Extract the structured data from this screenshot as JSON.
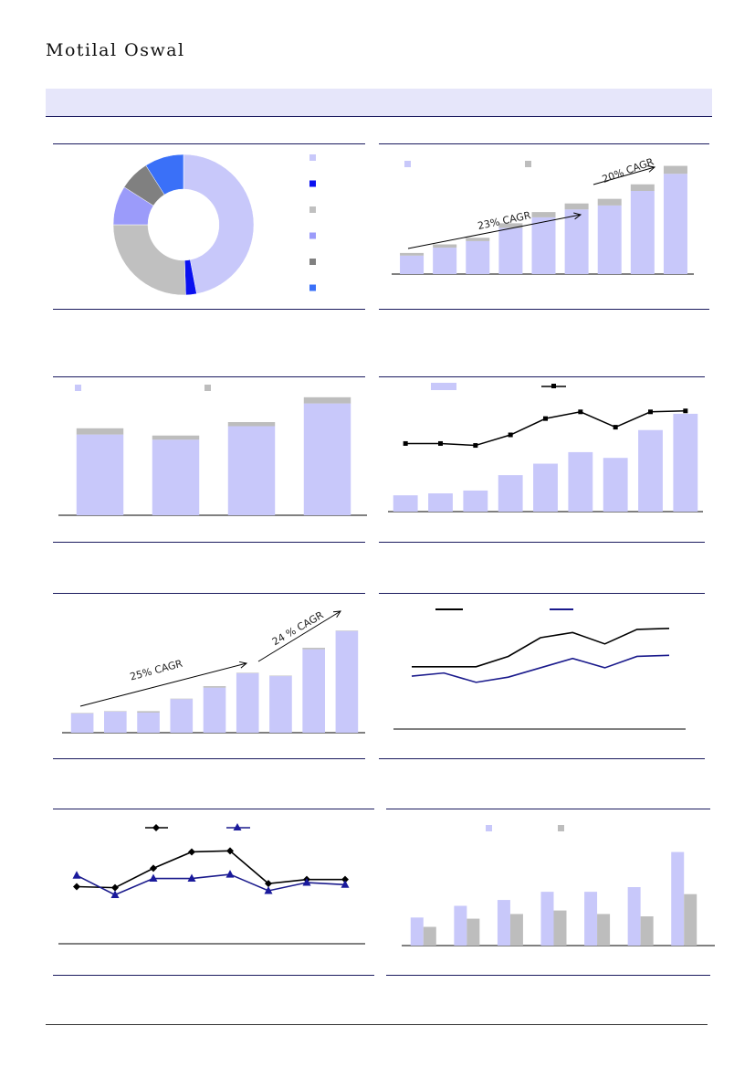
{
  "header": {
    "brand": "Motilal Oswal"
  },
  "colors": {
    "primary": "#c8c8fa",
    "secondary": "#bdbdbd",
    "rule": "#1a1a5e",
    "line_black": "#000000",
    "line_navy": "#1a1a8c"
  },
  "chart_data": [
    {
      "id": "donut",
      "type": "pie",
      "slices": [
        {
          "value": 47,
          "color": "#c8c8fa"
        },
        {
          "value": 2.5,
          "color": "#0a10f0"
        },
        {
          "value": 25.5,
          "color": "#c0c0c0"
        },
        {
          "value": 9,
          "color": "#9b9bfa"
        },
        {
          "value": 7,
          "color": "#808080"
        },
        {
          "value": 9,
          "color": "#3a70f8"
        }
      ],
      "legend_position": "right"
    },
    {
      "id": "stacked_bar_1",
      "type": "bar",
      "stacked": true,
      "series": [
        {
          "values": [
            14,
            20,
            25,
            35,
            43,
            49,
            52,
            63,
            76
          ]
        },
        {
          "values": [
            2,
            2.5,
            2.5,
            3.5,
            4,
            4.5,
            5,
            5,
            6
          ]
        }
      ],
      "ylim": [
        0,
        90
      ],
      "annotations": [
        "23% CAGR",
        "20% CAGR"
      ]
    },
    {
      "id": "stacked_bar_2",
      "type": "bar",
      "stacked": true,
      "series": [
        {
          "values": [
            78,
            73,
            86,
            108
          ]
        },
        {
          "values": [
            6,
            4,
            4,
            6
          ]
        }
      ],
      "ylim": [
        0,
        120
      ]
    },
    {
      "id": "bar_line_1",
      "type": "bar",
      "series": [
        {
          "kind": "bar",
          "values": [
            17,
            19,
            22,
            38,
            50,
            62,
            56,
            85,
            102
          ]
        },
        {
          "kind": "line",
          "values": [
            71,
            71,
            69,
            80,
            97,
            104,
            88,
            104,
            105
          ]
        }
      ],
      "ylim": [
        0,
        120
      ]
    },
    {
      "id": "stacked_bar_3",
      "type": "bar",
      "stacked": true,
      "series": [
        {
          "values": [
            20,
            22,
            21,
            35,
            47,
            62,
            59,
            87,
            106
          ]
        },
        {
          "values": [
            0.5,
            0.5,
            1.5,
            0.5,
            1.5,
            0.5,
            0.5,
            1.5,
            0.5
          ]
        }
      ],
      "ylim": [
        0,
        120
      ],
      "annotations": [
        "25% CAGR",
        "24 % CAGR"
      ]
    },
    {
      "id": "two_line_1",
      "type": "line",
      "series": [
        {
          "values": [
            60,
            60,
            60,
            70,
            88,
            93,
            82,
            96,
            97
          ]
        },
        {
          "values": [
            51,
            54,
            45,
            50,
            59,
            68,
            59,
            70,
            71
          ]
        }
      ],
      "ylim": [
        0,
        110
      ]
    },
    {
      "id": "two_line_2",
      "type": "line",
      "series": [
        {
          "marker": "diamond",
          "values": [
            55,
            54,
            73,
            89,
            90,
            58,
            62,
            62
          ]
        },
        {
          "marker": "triangle",
          "values": [
            66,
            47,
            63,
            63,
            67,
            51,
            59,
            57
          ]
        }
      ],
      "ylim": [
        0,
        110
      ]
    },
    {
      "id": "grouped_bar_1",
      "type": "bar",
      "series": [
        {
          "values": [
            24,
            34,
            39,
            46,
            46,
            50,
            80
          ]
        },
        {
          "values": [
            16,
            23,
            27,
            30,
            27,
            25,
            44
          ]
        }
      ],
      "ylim": [
        0,
        100
      ]
    }
  ]
}
